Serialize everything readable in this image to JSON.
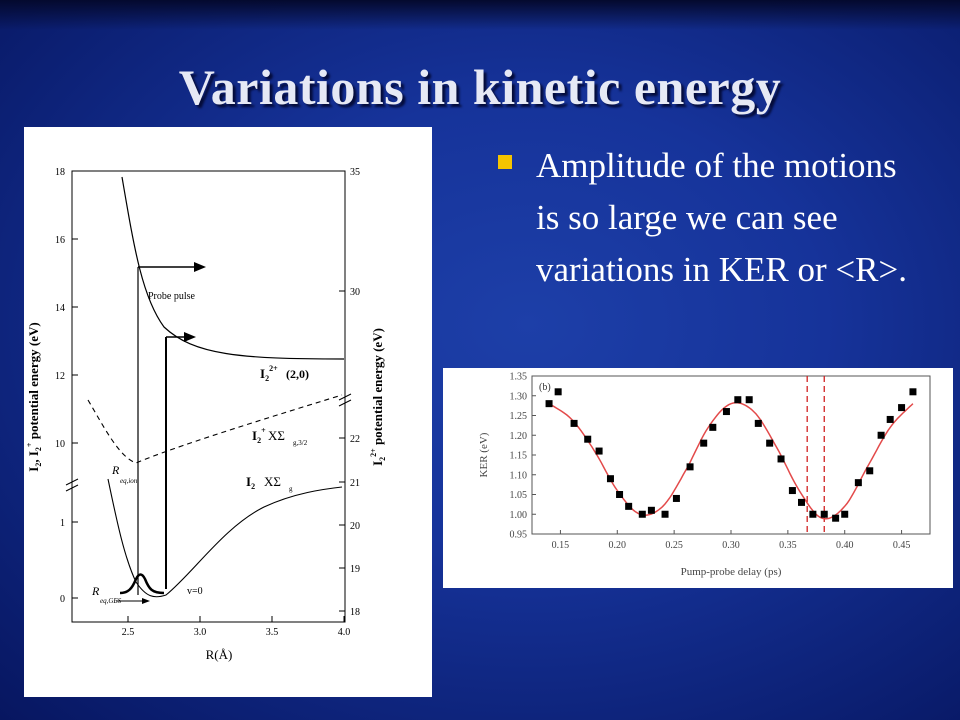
{
  "slide": {
    "title": "Variations in kinetic energy",
    "bullet": "Amplitude of the motions is so large we can see variations in KER or <R>.",
    "bullet_color": "#f4c400"
  },
  "left_figure": {
    "x_axis_label": "R(Å)",
    "x_ticks": [
      "2.5",
      "3.0",
      "3.5",
      "4.0"
    ],
    "left_ticks_upper": [
      "10",
      "12",
      "14",
      "16",
      "18"
    ],
    "left_ticks_lower": [
      "0",
      "1"
    ],
    "right_ticks_upper": [
      "22",
      "30",
      "35"
    ],
    "right_ticks_lower": [
      "18",
      "19",
      "20",
      "21"
    ],
    "probe_label": "Probe pulse",
    "state_dication": {
      "i2_2plus": "(2,0)",
      "i2_plus": "XΣ",
      "i2": "XΣ"
    },
    "r_eq_ion": "R",
    "r_eq_ion_sub": "eq,ion",
    "r_eq_gs": "R",
    "r_eq_gs_sub": "eq,GES",
    "v0": "v=0"
  },
  "chart_data": {
    "type": "scatter",
    "title": "",
    "panel_label": "(b)",
    "xlabel": "Pump-probe delay (ps)",
    "ylabel": "KER (eV)",
    "xlim": [
      0.125,
      0.475
    ],
    "ylim": [
      0.95,
      1.35
    ],
    "x_ticks": [
      0.15,
      0.2,
      0.25,
      0.3,
      0.35,
      0.4,
      0.45
    ],
    "y_ticks": [
      0.95,
      1.0,
      1.05,
      1.1,
      1.15,
      1.2,
      1.25,
      1.3,
      1.35
    ],
    "series": [
      {
        "kind": "points",
        "color": "#000000",
        "x": [
          0.14,
          0.148,
          0.162,
          0.174,
          0.184,
          0.194,
          0.202,
          0.21,
          0.222,
          0.23,
          0.242,
          0.252,
          0.264,
          0.276,
          0.284,
          0.296,
          0.306,
          0.316,
          0.324,
          0.334,
          0.344,
          0.354,
          0.362,
          0.372,
          0.382,
          0.392,
          0.4,
          0.412,
          0.422,
          0.432,
          0.44,
          0.45,
          0.46
        ],
        "y": [
          1.28,
          1.31,
          1.23,
          1.19,
          1.16,
          1.09,
          1.05,
          1.02,
          1.0,
          1.01,
          1.0,
          1.04,
          1.12,
          1.18,
          1.22,
          1.26,
          1.29,
          1.29,
          1.23,
          1.18,
          1.14,
          1.06,
          1.03,
          1.0,
          1.0,
          0.99,
          1.0,
          1.08,
          1.11,
          1.2,
          1.24,
          1.27,
          1.31
        ]
      },
      {
        "kind": "fit",
        "color": "#e34a4a",
        "x": [
          0.14,
          0.16,
          0.18,
          0.2,
          0.22,
          0.24,
          0.26,
          0.28,
          0.3,
          0.32,
          0.34,
          0.36,
          0.38,
          0.4,
          0.42,
          0.44,
          0.46
        ],
        "y": [
          1.28,
          1.24,
          1.16,
          1.06,
          1.0,
          1.02,
          1.11,
          1.22,
          1.28,
          1.26,
          1.17,
          1.06,
          0.99,
          1.02,
          1.12,
          1.22,
          1.28
        ]
      }
    ],
    "vlines": {
      "x": [
        0.367,
        0.382
      ],
      "color": "#d02020",
      "style": "dashed"
    }
  }
}
